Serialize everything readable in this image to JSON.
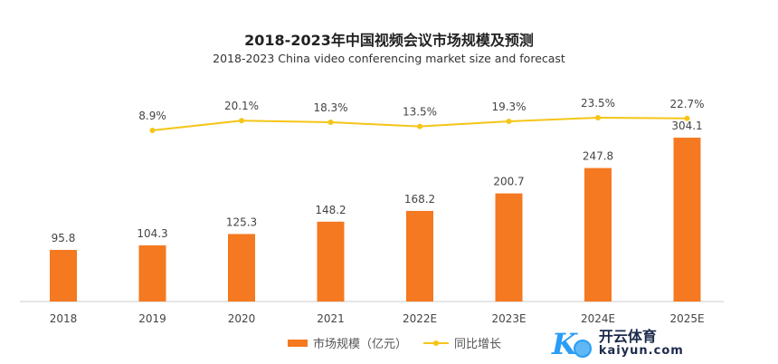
{
  "chart_data": {
    "type": "bar",
    "title": "2018-2023年中国视频会议市场规模及预测",
    "subtitle": "2018-2023 China video conferencing market size and forecast",
    "categories": [
      "2018",
      "2019",
      "2020",
      "2021",
      "2022E",
      "2023E",
      "2024E",
      "2025E"
    ],
    "series": [
      {
        "name": "市场规模（亿元）",
        "type": "bar",
        "color": "#f47920",
        "values": [
          95.8,
          104.3,
          125.3,
          148.2,
          168.2,
          200.7,
          247.8,
          304.1
        ],
        "labels": [
          "95.8",
          "104.3",
          "125.3",
          "148.2",
          "168.2",
          "200.7",
          "247.8",
          "304.1"
        ]
      },
      {
        "name": "同比增长",
        "type": "line",
        "color": "#f5c518",
        "values": [
          null,
          8.9,
          20.1,
          18.3,
          13.5,
          19.3,
          23.5,
          22.7
        ],
        "labels": [
          null,
          "8.9%",
          "20.1%",
          "18.3%",
          "13.5%",
          "19.3%",
          "23.5%",
          "22.7%"
        ]
      }
    ],
    "legend": "bottom",
    "grid": false
  },
  "watermark": {
    "cn": "开云体育",
    "en": "kaiyun.com"
  }
}
